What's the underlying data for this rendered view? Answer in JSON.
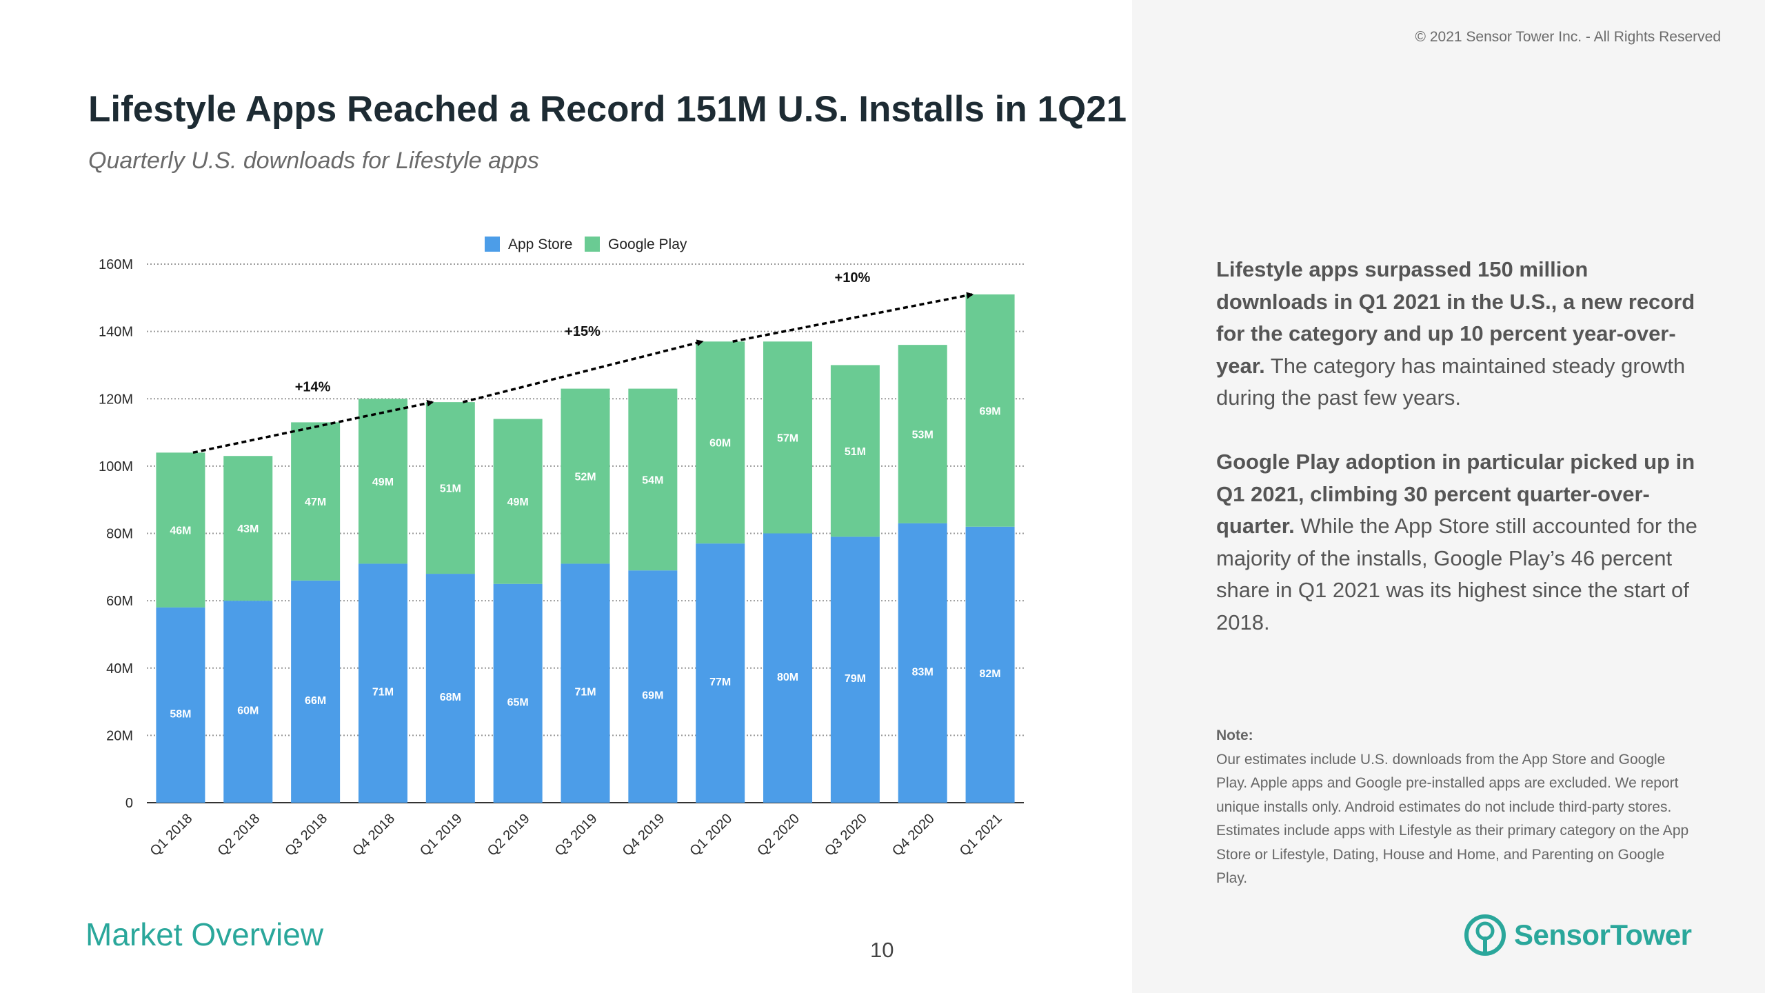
{
  "header": {
    "copyright": "© 2021 Sensor Tower Inc. - All Rights Reserved",
    "title": "Lifestyle Apps Reached a Record 151M U.S. Installs in 1Q21",
    "subtitle": "Quarterly U.S. downloads for Lifestyle apps"
  },
  "chart_data": {
    "type": "bar",
    "stacked": true,
    "title": "Lifestyle Apps Reached a Record 151M U.S. Installs in 1Q21",
    "subtitle": "Quarterly U.S. downloads for Lifestyle apps",
    "categories": [
      "Q1 2018",
      "Q2 2018",
      "Q3 2018",
      "Q4 2018",
      "Q1 2019",
      "Q2 2019",
      "Q3 2019",
      "Q4 2019",
      "Q1 2020",
      "Q2 2020",
      "Q3 2020",
      "Q4 2020",
      "Q1 2021"
    ],
    "series": [
      {
        "name": "App Store",
        "color": "#4c9de8",
        "values": [
          58,
          60,
          66,
          71,
          68,
          65,
          71,
          69,
          77,
          80,
          79,
          83,
          82
        ],
        "labels": [
          "58M",
          "60M",
          "66M",
          "71M",
          "68M",
          "65M",
          "71M",
          "69M",
          "77M",
          "80M",
          "79M",
          "83M",
          "82M"
        ]
      },
      {
        "name": "Google Play",
        "color": "#6acb93",
        "values": [
          46,
          43,
          47,
          49,
          51,
          49,
          52,
          54,
          60,
          57,
          51,
          53,
          69
        ],
        "labels": [
          "46M",
          "43M",
          "47M",
          "49M",
          "51M",
          "49M",
          "52M",
          "54M",
          "60M",
          "57M",
          "51M",
          "53M",
          "69M"
        ]
      }
    ],
    "ylim": [
      0,
      160
    ],
    "yticks": [
      0,
      20,
      40,
      60,
      80,
      100,
      120,
      140,
      160
    ],
    "ytick_labels": [
      "0",
      "20M",
      "40M",
      "60M",
      "80M",
      "100M",
      "120M",
      "140M",
      "160M"
    ],
    "grid": true,
    "legend": "top-center",
    "xlabel": "",
    "ylabel": "",
    "annotations": [
      {
        "label": "+14%",
        "from": "Q1 2018",
        "to": "Q1 2019"
      },
      {
        "label": "+15%",
        "from": "Q1 2019",
        "to": "Q1 2020"
      },
      {
        "label": "+10%",
        "from": "Q1 2020",
        "to": "Q1 2021"
      }
    ]
  },
  "commentary": {
    "p1_bold": "Lifestyle apps surpassed 150 million downloads in Q1 2021 in the U.S., a new record for the category and up 10 percent year-over-year.",
    "p1_rest": " The category has maintained steady growth during the past few years.",
    "p2_bold": "Google Play adoption in particular picked up in Q1 2021, climbing 30 percent quarter-over-quarter.",
    "p2_rest": " While the App Store still accounted for the majority of the installs, Google Play’s 46 percent share in Q1 2021 was its highest since the start of 2018.",
    "note_title": "Note:",
    "note_body": "Our estimates include U.S. downloads from the App Store and Google Play. Apple apps and Google pre-installed apps are excluded. We report unique installs only. Android estimates do not include third-party stores. Estimates include apps with Lifestyle as their primary category on the App Store or Lifestyle, Dating, House and Home, and Parenting on Google Play."
  },
  "footer": {
    "section": "Market Overview",
    "page_number": "10",
    "brand_prefix": "Sensor",
    "brand_suffix": "Tower",
    "brand_color": "#2aa79b"
  }
}
